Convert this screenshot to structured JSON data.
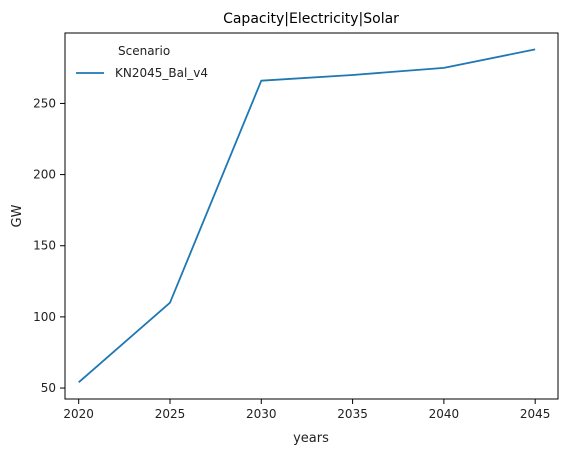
{
  "chart_data": {
    "type": "line",
    "title": "Capacity|Electricity|Solar",
    "xlabel": "years",
    "ylabel": "GW",
    "x": [
      2020,
      2025,
      2030,
      2035,
      2040,
      2045
    ],
    "xticks": [
      2020,
      2025,
      2030,
      2035,
      2040,
      2045
    ],
    "yticks": [
      50,
      100,
      150,
      200,
      250
    ],
    "xlim": [
      2019.25,
      2046.25
    ],
    "ylim": [
      42.3,
      299.5
    ],
    "grid": false,
    "legend": {
      "title": "Scenario",
      "placement": "top-left"
    },
    "series": [
      {
        "name": "KN2045_Bal_v4",
        "values": [
          54,
          110,
          266,
          270,
          275,
          288
        ],
        "color": "#1f77b4"
      }
    ]
  }
}
